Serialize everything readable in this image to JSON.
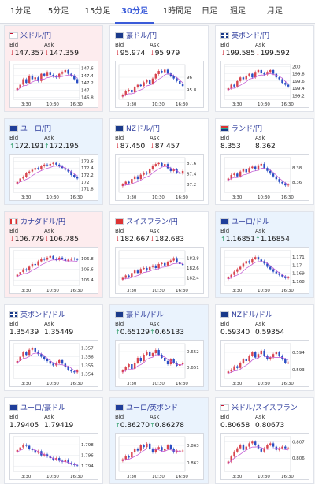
{
  "tabs": [
    {
      "label": "1分足"
    },
    {
      "label": "5分足"
    },
    {
      "label": "15分足"
    },
    {
      "label": "30分足",
      "active": true
    },
    {
      "label": "1時間足"
    },
    {
      "label": "日足"
    },
    {
      "label": "週足"
    },
    {
      "label": "月足"
    }
  ],
  "labels": {
    "bid": "Bid",
    "ask": "Ask"
  },
  "cards": [
    {
      "pair": "米ドル/円",
      "theme": "red",
      "flag": "us",
      "dir": "down",
      "bid": "147.357",
      "ask": "147.359",
      "chart_data": {
        "type": "candlestick",
        "y_ticks": [
          "147.6",
          "147.4",
          "147.2",
          "147",
          "146.8"
        ],
        "ylim": [
          146.75,
          147.7
        ],
        "x_ticks": [
          "3:30",
          "10:30",
          "16:30"
        ],
        "close": [
          147.05,
          147.15,
          147.3,
          147.2,
          147.4,
          147.3,
          147.35,
          147.25,
          147.45,
          147.4,
          147.5,
          147.42,
          147.38,
          147.35,
          147.45,
          147.5,
          147.55,
          147.45,
          147.4,
          147.3,
          147.2
        ]
      }
    },
    {
      "pair": "豪ドル/円",
      "theme": "white",
      "flag": "au",
      "dir": "down",
      "bid": "95.974",
      "ask": "95.979",
      "chart_data": {
        "type": "candlestick",
        "y_ticks": [
          "96",
          "95.8"
        ],
        "ylim": [
          95.65,
          96.2
        ],
        "x_ticks": [
          "3:30",
          "10:30",
          "16:30"
        ],
        "close": [
          95.72,
          95.78,
          95.8,
          95.76,
          95.84,
          95.88,
          95.86,
          95.92,
          95.95,
          95.9,
          95.98,
          96.05,
          96.1,
          96.08,
          96.12,
          96.06,
          96.02,
          95.98,
          95.94,
          95.9,
          95.86
        ]
      }
    },
    {
      "pair": "英ポンド/円",
      "theme": "white",
      "flag": "uk",
      "dir": "down",
      "bid": "199.585",
      "ask": "199.592",
      "chart_data": {
        "type": "candlestick",
        "y_ticks": [
          "200",
          "199.8",
          "199.6",
          "199.4",
          "199.2"
        ],
        "ylim": [
          199.1,
          200.05
        ],
        "x_ticks": [
          "3:30",
          "10:30",
          "16:30"
        ],
        "close": [
          199.4,
          199.5,
          199.45,
          199.6,
          199.7,
          199.65,
          199.75,
          199.8,
          199.7,
          199.85,
          199.9,
          199.82,
          199.78,
          199.85,
          199.9,
          199.8,
          199.7,
          199.65,
          199.55,
          199.5,
          199.45
        ]
      }
    },
    {
      "pair": "ユーロ/円",
      "theme": "blue",
      "flag": "eu",
      "dir": "up",
      "bid": "172.191",
      "ask": "172.195",
      "chart_data": {
        "type": "candlestick",
        "y_ticks": [
          "172.6",
          "172.4",
          "172.2",
          "172",
          "171.8"
        ],
        "ylim": [
          171.7,
          172.7
        ],
        "x_ticks": [
          "3:30",
          "10:30",
          "16:30"
        ],
        "close": [
          172.0,
          172.1,
          172.15,
          172.25,
          172.3,
          172.35,
          172.4,
          172.38,
          172.45,
          172.5,
          172.48,
          172.52,
          172.55,
          172.5,
          172.45,
          172.4,
          172.35,
          172.3,
          172.2,
          172.15,
          172.1
        ]
      }
    },
    {
      "pair": "NZドル/円",
      "theme": "white",
      "flag": "nz",
      "dir": "down",
      "bid": "87.450",
      "ask": "87.457",
      "chart_data": {
        "type": "candlestick",
        "y_ticks": [
          "87.6",
          "87.4",
          "87.2"
        ],
        "ylim": [
          87.05,
          87.7
        ],
        "x_ticks": [
          "3:30",
          "10:30",
          "16:30"
        ],
        "close": [
          87.2,
          87.25,
          87.22,
          87.3,
          87.35,
          87.3,
          87.38,
          87.42,
          87.4,
          87.48,
          87.55,
          87.58,
          87.6,
          87.55,
          87.58,
          87.5,
          87.45,
          87.48,
          87.42,
          87.4,
          87.45
        ]
      }
    },
    {
      "pair": "ランド/円",
      "theme": "white",
      "flag": "za",
      "dir": "none",
      "bid": "8.353",
      "ask": "8.362",
      "chart_data": {
        "type": "candlestick",
        "y_ticks": [
          "8.38",
          "8.36"
        ],
        "ylim": [
          8.345,
          8.395
        ],
        "x_ticks": [
          "3:30",
          "10:30",
          "16:30"
        ],
        "close": [
          8.365,
          8.37,
          8.372,
          8.368,
          8.375,
          8.378,
          8.374,
          8.38,
          8.382,
          8.378,
          8.384,
          8.386,
          8.38,
          8.376,
          8.372,
          8.368,
          8.364,
          8.36,
          8.358,
          8.355,
          8.356
        ]
      }
    },
    {
      "pair": "カナダドル/円",
      "theme": "red",
      "flag": "ca",
      "dir": "down",
      "bid": "106.779",
      "ask": "106.785",
      "chart_data": {
        "type": "candlestick",
        "y_ticks": [
          "106.8",
          "106.6",
          "106.4"
        ],
        "ylim": [
          106.3,
          106.95
        ],
        "x_ticks": [
          "3:30",
          "10:30",
          "16:30"
        ],
        "close": [
          106.5,
          106.55,
          106.6,
          106.58,
          106.65,
          106.7,
          106.68,
          106.75,
          106.8,
          106.78,
          106.82,
          106.85,
          106.8,
          106.78,
          106.82,
          106.8,
          106.76,
          106.78,
          106.8,
          106.79,
          106.78
        ]
      }
    },
    {
      "pair": "スイスフラン/円",
      "theme": "white",
      "flag": "ch",
      "dir": "down",
      "bid": "182.667",
      "ask": "182.683",
      "chart_data": {
        "type": "candlestick",
        "y_ticks": [
          "182.8",
          "182.6",
          "182.4"
        ],
        "ylim": [
          182.25,
          182.95
        ],
        "x_ticks": [
          "3:30",
          "10:30",
          "16:30"
        ],
        "close": [
          182.4,
          182.45,
          182.42,
          182.5,
          182.55,
          182.5,
          182.58,
          182.6,
          182.55,
          182.62,
          182.65,
          182.6,
          182.68,
          182.7,
          182.65,
          182.72,
          182.75,
          182.8,
          182.72,
          182.68,
          182.66
        ]
      }
    },
    {
      "pair": "ユーロ/ドル",
      "theme": "blue",
      "flag": "eu",
      "dir": "up",
      "bid": "1.16851",
      "ask": "1.16854",
      "chart_data": {
        "type": "candlestick",
        "y_ticks": [
          "1.171",
          "1.17",
          "1.169",
          "1.168"
        ],
        "ylim": [
          1.1675,
          1.1718
        ],
        "x_ticks": [
          "3:30",
          "10:30",
          "16:30"
        ],
        "close": [
          1.1685,
          1.1688,
          1.1692,
          1.1695,
          1.1698,
          1.1702,
          1.1705,
          1.1703,
          1.1708,
          1.171,
          1.1707,
          1.1705,
          1.1702,
          1.1698,
          1.1695,
          1.1692,
          1.169,
          1.1688,
          1.1686,
          1.1684,
          1.1685
        ]
      }
    },
    {
      "pair": "英ポンド/ドル",
      "theme": "white",
      "flag": "uk",
      "dir": "none",
      "bid": "1.35439",
      "ask": "1.35449",
      "chart_data": {
        "type": "candlestick",
        "y_ticks": [
          "1.357",
          "1.356",
          "1.355",
          "1.354"
        ],
        "ylim": [
          1.3535,
          1.3575
        ],
        "x_ticks": [
          "3:30",
          "10:30",
          "16:30"
        ],
        "close": [
          1.3555,
          1.356,
          1.3565,
          1.3562,
          1.3568,
          1.357,
          1.3566,
          1.3563,
          1.356,
          1.3557,
          1.3555,
          1.3552,
          1.355,
          1.3553,
          1.3556,
          1.3552,
          1.3548,
          1.3545,
          1.3543,
          1.3542,
          1.3544
        ]
      }
    },
    {
      "pair": "豪ドル/ドル",
      "theme": "blue",
      "flag": "au",
      "dir": "up",
      "bid": "0.65129",
      "ask": "0.65133",
      "chart_data": {
        "type": "candlestick",
        "y_ticks": [
          "0.652",
          "0.651"
        ],
        "ylim": [
          0.6503,
          0.6525
        ],
        "x_ticks": [
          "3:30",
          "10:30",
          "16:30"
        ],
        "close": [
          0.6508,
          0.651,
          0.6512,
          0.6509,
          0.6513,
          0.6516,
          0.6514,
          0.6518,
          0.652,
          0.6517,
          0.6519,
          0.6521,
          0.6518,
          0.6516,
          0.6514,
          0.6512,
          0.6515,
          0.6513,
          0.6511,
          0.6512,
          0.6513
        ]
      }
    },
    {
      "pair": "NZドル/ドル",
      "theme": "white",
      "flag": "nz",
      "dir": "none",
      "bid": "0.59340",
      "ask": "0.59354",
      "chart_data": {
        "type": "candlestick",
        "y_ticks": [
          "0.594",
          "0.593"
        ],
        "ylim": [
          0.5925,
          0.5945
        ],
        "x_ticks": [
          "3:30",
          "10:30",
          "16:30"
        ],
        "close": [
          0.5929,
          0.593,
          0.5932,
          0.5931,
          0.5934,
          0.5936,
          0.5935,
          0.5938,
          0.594,
          0.5937,
          0.5939,
          0.5941,
          0.5938,
          0.5936,
          0.5937,
          0.5939,
          0.594,
          0.5938,
          0.5936,
          0.5934,
          0.5934
        ]
      }
    },
    {
      "pair": "ユーロ/豪ドル",
      "theme": "white",
      "flag": "eu",
      "dir": "none",
      "bid": "1.79405",
      "ask": "1.79419",
      "chart_data": {
        "type": "candlestick",
        "y_ticks": [
          "1.798",
          "1.796",
          "1.794"
        ],
        "ylim": [
          1.793,
          1.7995
        ],
        "x_ticks": [
          "3:30",
          "10:30",
          "16:30"
        ],
        "close": [
          1.797,
          1.7975,
          1.798,
          1.7978,
          1.7972,
          1.797,
          1.7965,
          1.7968,
          1.796,
          1.7962,
          1.7958,
          1.7955,
          1.7952,
          1.7955,
          1.795,
          1.7948,
          1.7952,
          1.7946,
          1.7944,
          1.7942,
          1.7941
        ]
      }
    },
    {
      "pair": "ユーロ/英ポンド",
      "theme": "blue",
      "flag": "eu",
      "dir": "up",
      "bid": "0.86270",
      "ask": "0.86278",
      "chart_data": {
        "type": "candlestick",
        "y_ticks": [
          "0.863",
          "0.862"
        ],
        "ylim": [
          0.8615,
          0.8635
        ],
        "x_ticks": [
          "3:30",
          "10:30",
          "16:30"
        ],
        "close": [
          0.8622,
          0.8624,
          0.8623,
          0.8626,
          0.8628,
          0.8627,
          0.863,
          0.8629,
          0.8631,
          0.8628,
          0.8626,
          0.8628,
          0.8629,
          0.8627,
          0.8628,
          0.863,
          0.8628,
          0.8626,
          0.8627,
          0.8627,
          0.8627
        ]
      }
    },
    {
      "pair": "米ドル/スイスフラン",
      "theme": "white",
      "flag": "us",
      "dir": "none",
      "bid": "0.80658",
      "ask": "0.80673",
      "chart_data": {
        "type": "candlestick",
        "y_ticks": [
          "0.807",
          "0.806"
        ],
        "ylim": [
          0.8052,
          0.8073
        ],
        "x_ticks": [
          "3:30",
          "10:30",
          "16:30"
        ],
        "close": [
          0.8058,
          0.8061,
          0.8064,
          0.8066,
          0.8068,
          0.8065,
          0.8067,
          0.8069,
          0.807,
          0.8068,
          0.8066,
          0.8064,
          0.8066,
          0.8068,
          0.8069,
          0.8067,
          0.8065,
          0.8066,
          0.8067,
          0.8066,
          0.8066
        ]
      }
    }
  ]
}
